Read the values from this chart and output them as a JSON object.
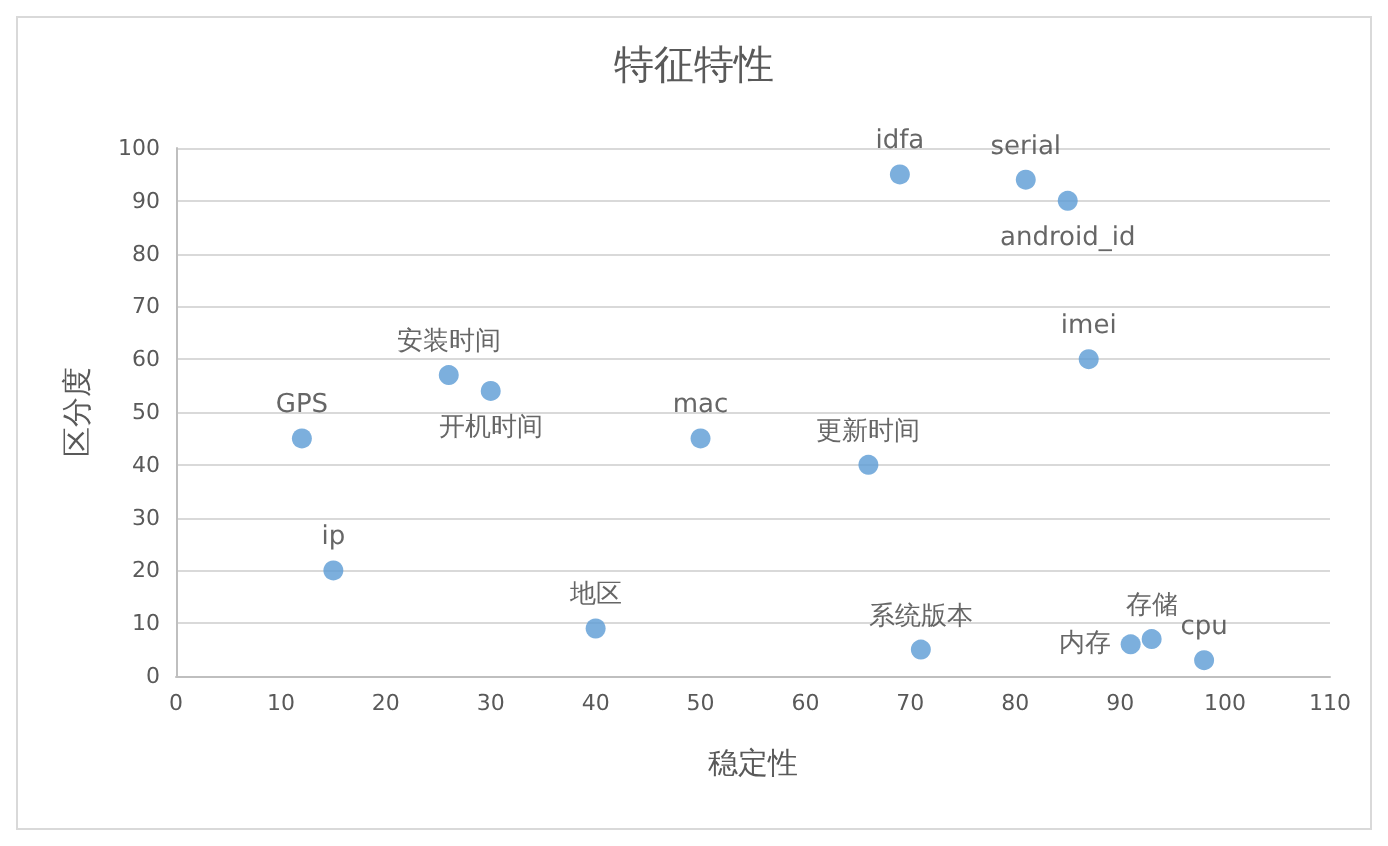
{
  "chart_data": {
    "type": "scatter",
    "title": "特征特性",
    "xlabel": "稳定性",
    "ylabel": "区分度",
    "x": [
      12,
      15,
      26,
      30,
      40,
      50,
      66,
      69,
      71,
      81,
      85,
      87,
      91,
      93,
      98
    ],
    "values": [
      45,
      20,
      57,
      54,
      9,
      45,
      40,
      95,
      5,
      94,
      90,
      60,
      6,
      7,
      3
    ],
    "color": "#5b9bd5",
    "marker": "circle",
    "xlim": [
      0,
      110
    ],
    "xticks": [
      0,
      10,
      20,
      30,
      40,
      50,
      60,
      70,
      80,
      90,
      100,
      110
    ],
    "ylim": [
      0,
      100
    ],
    "yticks": [
      0,
      10,
      20,
      30,
      40,
      50,
      60,
      70,
      80,
      90,
      100
    ],
    "grid": "y",
    "annotations": [
      {
        "text": "GPS",
        "x": 12,
        "y": 45
      },
      {
        "text": "ip",
        "x": 15,
        "y": 20
      },
      {
        "text": "安装时间",
        "x": 26,
        "y": 57
      },
      {
        "text": "开机时间",
        "x": 30,
        "y": 54
      },
      {
        "text": "地区",
        "x": 40,
        "y": 9
      },
      {
        "text": "mac",
        "x": 50,
        "y": 45
      },
      {
        "text": "更新时间",
        "x": 66,
        "y": 40
      },
      {
        "text": "idfa",
        "x": 69,
        "y": 95
      },
      {
        "text": "系统版本",
        "x": 71,
        "y": 5
      },
      {
        "text": "serial",
        "x": 81,
        "y": 94
      },
      {
        "text": "android_id",
        "x": 85,
        "y": 90
      },
      {
        "text": "imei",
        "x": 87,
        "y": 60
      },
      {
        "text": "内存",
        "x": 91,
        "y": 6
      },
      {
        "text": "存储",
        "x": 93,
        "y": 7
      },
      {
        "text": "cpu",
        "x": 98,
        "y": 3
      }
    ]
  }
}
